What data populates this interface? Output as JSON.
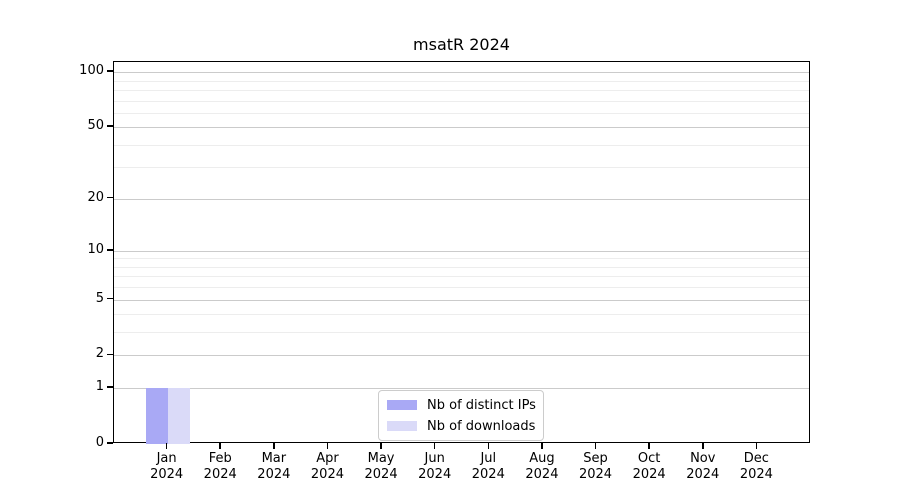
{
  "chart_data": {
    "type": "bar",
    "title": "msatR 2024",
    "categories": [
      "Jan 2024",
      "Feb 2024",
      "Mar 2024",
      "Apr 2024",
      "May 2024",
      "Jun 2024",
      "Jul 2024",
      "Aug 2024",
      "Sep 2024",
      "Oct 2024",
      "Nov 2024",
      "Dec 2024"
    ],
    "series": [
      {
        "name": "Nb of distinct IPs",
        "color": "#a9a9f5",
        "values": [
          1,
          0,
          0,
          0,
          0,
          0,
          0,
          0,
          0,
          0,
          0,
          0
        ]
      },
      {
        "name": "Nb of downloads",
        "color": "#dadaf8",
        "values": [
          1,
          0,
          0,
          0,
          0,
          0,
          0,
          0,
          0,
          0,
          0,
          0
        ]
      }
    ],
    "y_axis": {
      "scale": "log1p",
      "major_ticks": [
        0,
        1,
        2,
        5,
        10,
        20,
        50,
        100
      ],
      "minor_ticks": [
        3,
        4,
        6,
        7,
        8,
        9,
        30,
        40,
        60,
        70,
        80,
        90
      ],
      "max": 113.5
    },
    "xlabel": "",
    "ylabel": "",
    "grid": true,
    "legend": {
      "position": "lower center"
    }
  }
}
